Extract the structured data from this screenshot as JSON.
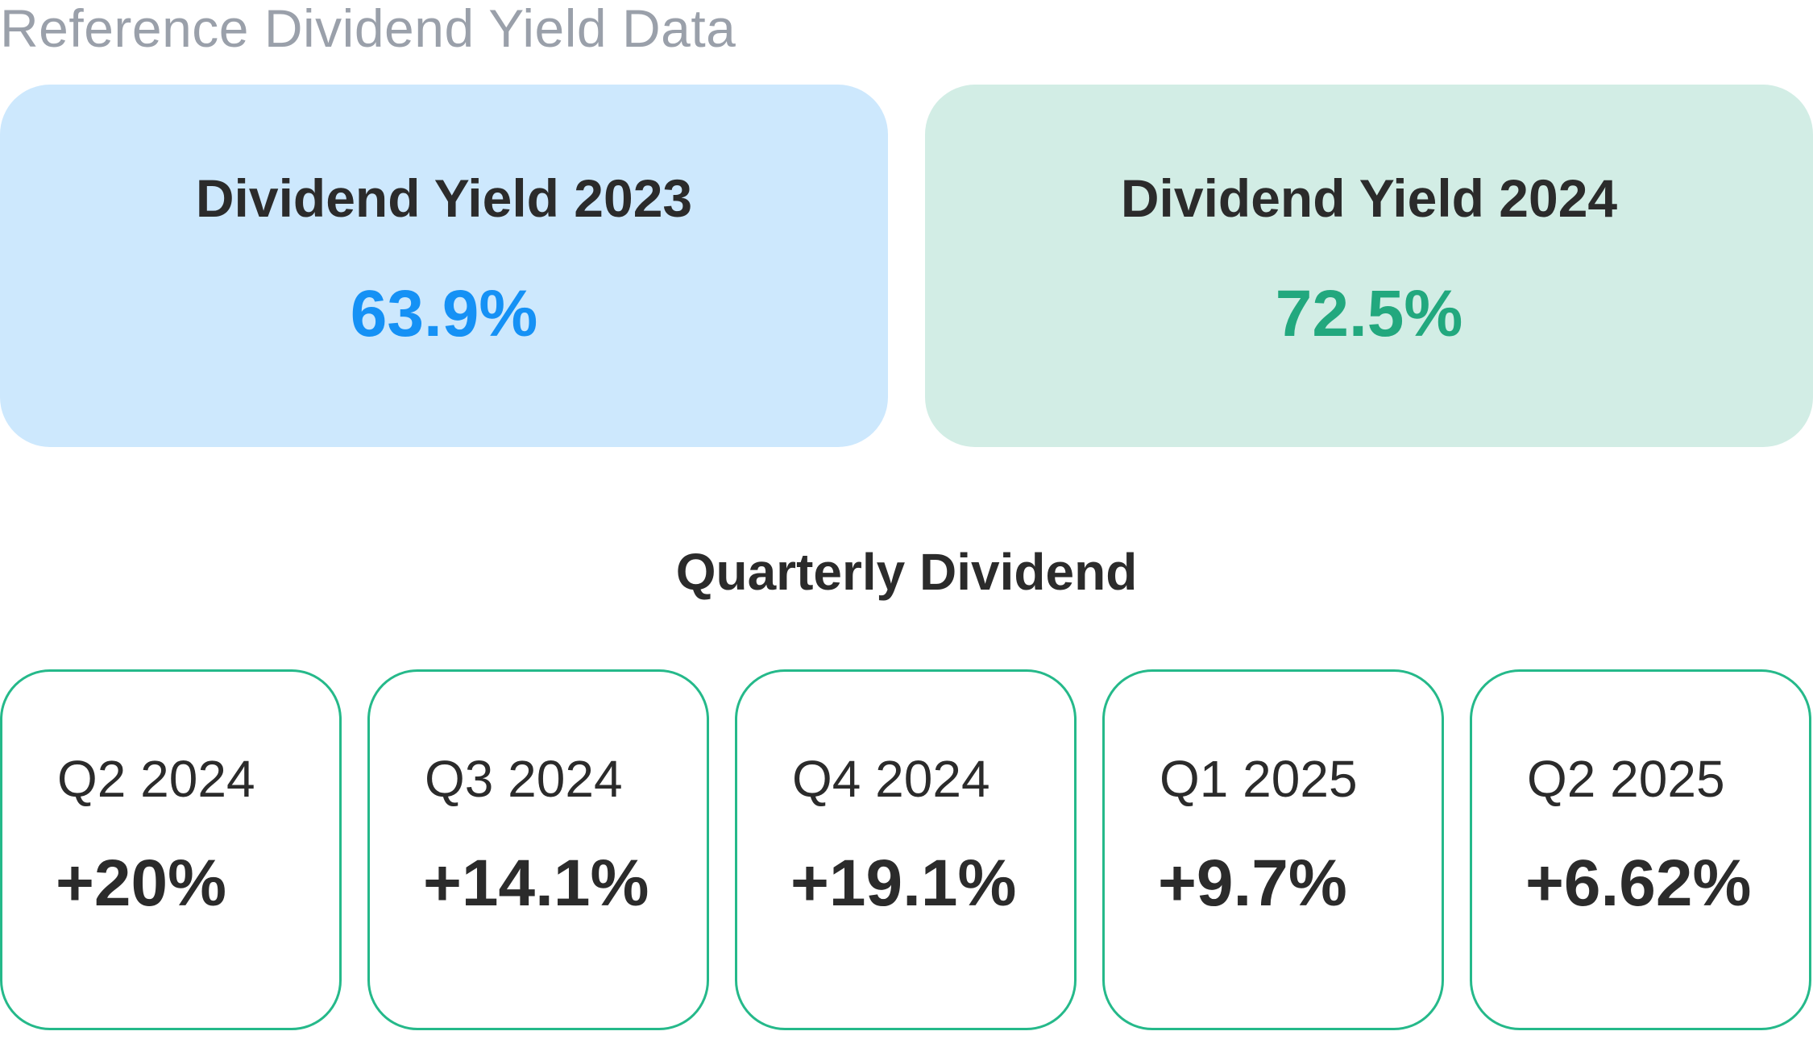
{
  "page": {
    "title": "Reference Dividend Yield Data"
  },
  "yield_cards": [
    {
      "label": "Dividend Yield 2023",
      "value": "63.9%",
      "value_color": "#1591f5",
      "background": "#cde8fd"
    },
    {
      "label": "Dividend Yield 2024",
      "value": "72.5%",
      "value_color": "#22a87e",
      "background": "#d2ede5"
    }
  ],
  "quarterly": {
    "title": "Quarterly Dividend",
    "border_color": "#25b98a",
    "items": [
      {
        "label": "Q2 2024",
        "value": "+20%"
      },
      {
        "label": "Q3 2024",
        "value": "+14.1%"
      },
      {
        "label": "Q4 2024",
        "value": "+19.1%"
      },
      {
        "label": "Q1 2025",
        "value": "+9.7%"
      },
      {
        "label": "Q2 2025",
        "value": "+6.62%"
      }
    ]
  }
}
